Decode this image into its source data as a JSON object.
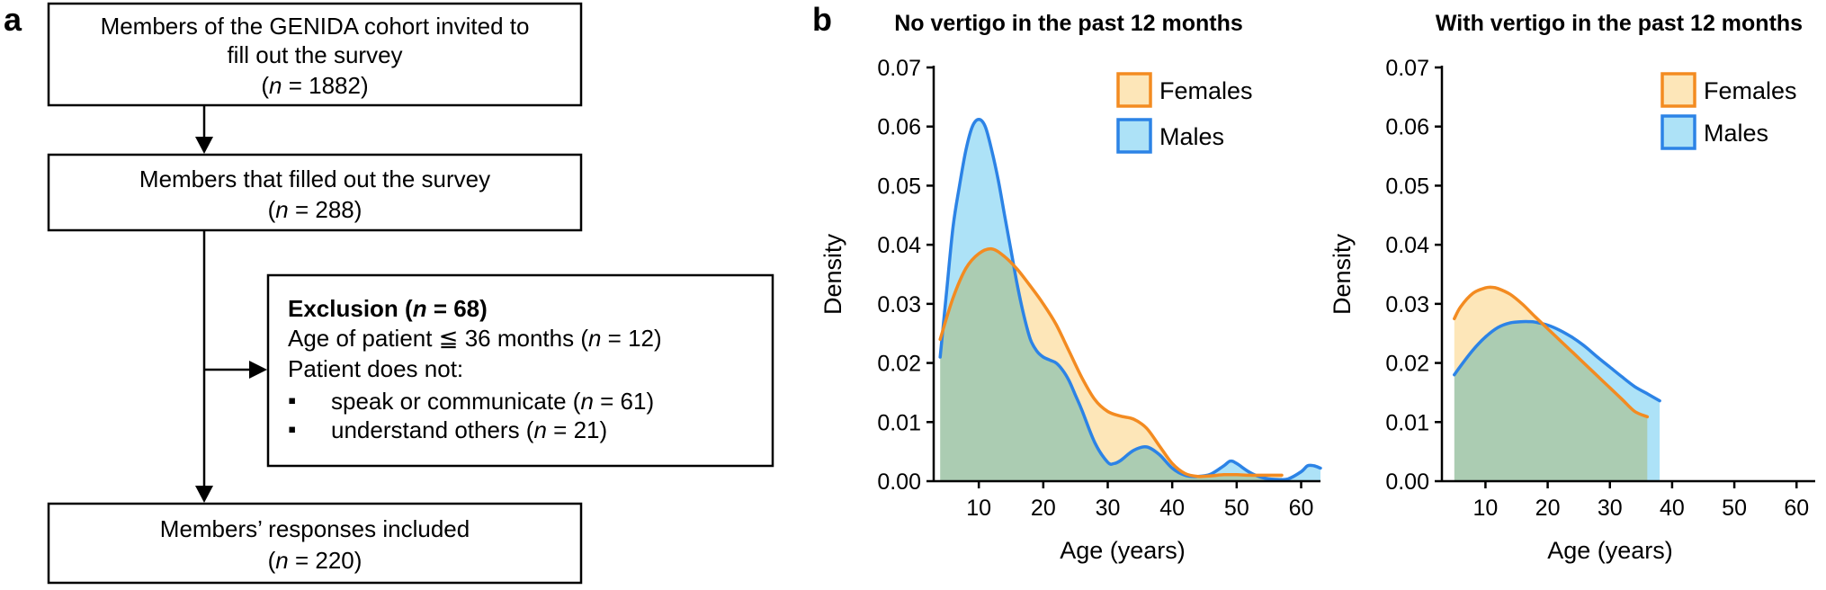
{
  "panel_a": {
    "label": "a",
    "box1": {
      "line1": "Members of the GENIDA cohort invited to",
      "line2": "fill out the survey",
      "n_label": "n",
      "n_value": " = 1882)"
    },
    "box2": {
      "line1": "Members that filled out the survey",
      "n_label": "n",
      "n_value": " = 288)"
    },
    "exclusion": {
      "title_pre": "Exclusion (",
      "title_n": "n",
      "title_post": " = 68)",
      "age_line_pre": "Age of patient ≦ 36 months (",
      "age_line_n": "n",
      "age_line_post": " = 12)",
      "does_not": "Patient does not:",
      "bullet_symbol": "▪",
      "bullets": [
        {
          "pre": "speak or communicate (",
          "n": "n",
          "post": " = 61)"
        },
        {
          "pre": "understand others (",
          "n": "n",
          "post": " = 21)"
        }
      ]
    },
    "box3": {
      "line1": "Members’ responses included",
      "n_label": "n",
      "n_value": " = 220)"
    },
    "colors": {
      "line": "#000000"
    }
  },
  "panel_b": {
    "label": "b"
  },
  "chart_data": [
    {
      "type": "area",
      "title": "No vertigo in the past 12 months",
      "xlabel": "Age (years)",
      "ylabel": "Density",
      "xlim": [
        3,
        63
      ],
      "ylim": [
        0,
        0.07
      ],
      "xticks": [
        10,
        20,
        30,
        40,
        50,
        60
      ],
      "yticks": [
        0.0,
        0.01,
        0.02,
        0.03,
        0.04,
        0.05,
        0.06,
        0.07
      ],
      "ytick_labels": [
        "0.00",
        "0.01",
        "0.02",
        "0.03",
        "0.04",
        "0.05",
        "0.06",
        "0.07"
      ],
      "legend": {
        "position": "top-right"
      },
      "series": [
        {
          "name": "Females",
          "color": "#f38b21",
          "fill": "#fde6b8",
          "x": [
            4,
            6,
            8,
            10,
            12,
            14,
            16,
            18,
            20,
            22,
            24,
            26,
            28,
            30,
            32,
            34,
            36,
            38,
            40,
            42,
            44,
            46,
            48,
            50,
            52,
            54,
            56,
            57
          ],
          "values": [
            0.024,
            0.031,
            0.036,
            0.0385,
            0.0393,
            0.038,
            0.0358,
            0.033,
            0.03,
            0.0265,
            0.022,
            0.0175,
            0.0138,
            0.0118,
            0.011,
            0.0105,
            0.009,
            0.006,
            0.003,
            0.0013,
            0.0008,
            0.0009,
            0.0011,
            0.0011,
            0.001,
            0.001,
            0.001,
            0.001
          ]
        },
        {
          "name": "Males",
          "color": "#2c83e6",
          "fill": "#ade2f7",
          "x": [
            4,
            5,
            6,
            7,
            8,
            9,
            10,
            11,
            12,
            13,
            14,
            15,
            16,
            17,
            18,
            19,
            20,
            21,
            22,
            23,
            24,
            25,
            26,
            28,
            30,
            31,
            32,
            34,
            36,
            38,
            40,
            42,
            44,
            46,
            48,
            49,
            50,
            52,
            54,
            56,
            58,
            60,
            61,
            62,
            63
          ],
          "values": [
            0.021,
            0.032,
            0.043,
            0.05,
            0.056,
            0.06,
            0.0612,
            0.06,
            0.056,
            0.051,
            0.045,
            0.039,
            0.033,
            0.028,
            0.024,
            0.022,
            0.021,
            0.0205,
            0.02,
            0.0188,
            0.017,
            0.0145,
            0.012,
            0.0065,
            0.0032,
            0.003,
            0.0035,
            0.0052,
            0.0058,
            0.0045,
            0.0022,
            0.001,
            0.0008,
            0.0012,
            0.0026,
            0.0034,
            0.003,
            0.0015,
            0.0006,
            0.0003,
            0.0004,
            0.0016,
            0.0026,
            0.0026,
            0.0022
          ]
        }
      ]
    },
    {
      "type": "area",
      "title": "With vertigo in the past 12 months",
      "xlabel": "Age (years)",
      "ylabel": "Density",
      "xlim": [
        3,
        63
      ],
      "ylim": [
        0,
        0.07
      ],
      "xticks": [
        10,
        20,
        30,
        40,
        50,
        60
      ],
      "yticks": [
        0.0,
        0.01,
        0.02,
        0.03,
        0.04,
        0.05,
        0.06,
        0.07
      ],
      "ytick_labels": [
        "0.00",
        "0.01",
        "0.02",
        "0.03",
        "0.04",
        "0.05",
        "0.06",
        "0.07"
      ],
      "legend": {
        "position": "top-right"
      },
      "series": [
        {
          "name": "Females",
          "color": "#f38b21",
          "fill": "#fde6b8",
          "x": [
            5,
            6,
            8,
            10,
            11,
            12,
            14,
            16,
            18,
            20,
            22,
            24,
            26,
            28,
            30,
            32,
            34,
            36
          ],
          "values": [
            0.0275,
            0.0295,
            0.0318,
            0.0327,
            0.0328,
            0.0326,
            0.0316,
            0.0299,
            0.0278,
            0.0258,
            0.0238,
            0.0218,
            0.0198,
            0.0178,
            0.0158,
            0.0138,
            0.0118,
            0.0109
          ]
        },
        {
          "name": "Males",
          "color": "#2c83e6",
          "fill": "#ade2f7",
          "x": [
            5,
            6,
            8,
            10,
            12,
            14,
            16,
            17,
            18,
            20,
            22,
            24,
            26,
            28,
            30,
            32,
            34,
            36,
            38
          ],
          "values": [
            0.018,
            0.0195,
            0.0222,
            0.0244,
            0.026,
            0.0268,
            0.027,
            0.027,
            0.0269,
            0.0264,
            0.0255,
            0.0243,
            0.0228,
            0.021,
            0.0193,
            0.0176,
            0.016,
            0.0148,
            0.0136
          ]
        }
      ]
    }
  ]
}
